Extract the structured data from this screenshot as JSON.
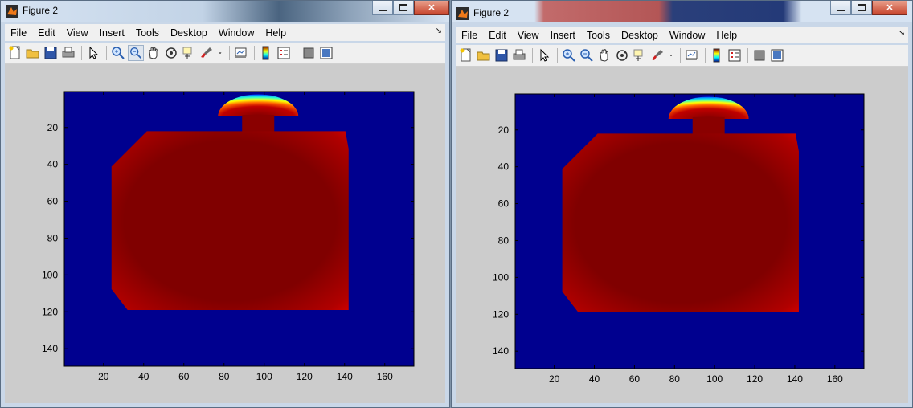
{
  "windows": [
    {
      "title": "Figure 2",
      "menus": [
        "File",
        "Edit",
        "View",
        "Insert",
        "Tools",
        "Desktop",
        "Window",
        "Help"
      ],
      "toolbar_icons": [
        "new-figure-icon",
        "open-file-icon",
        "save-icon",
        "print-icon",
        "edit-plot-arrow-icon",
        "zoom-in-icon",
        "zoom-out-icon",
        "pan-icon",
        "rotate-3d-icon",
        "data-cursor-icon",
        "brush-icon",
        "dropdown-arrow-icon",
        "link-plot-icon",
        "colorbar-icon",
        "legend-icon",
        "hide-plot-tools-icon",
        "show-plot-tools-icon"
      ],
      "chart_data": {
        "type": "heatmap",
        "description_colormap": "jet",
        "x_ticks": [
          20,
          40,
          60,
          80,
          100,
          120,
          140,
          160
        ],
        "y_ticks": [
          20,
          40,
          60,
          80,
          100,
          120,
          140
        ],
        "xlim": [
          0.5,
          174.5
        ],
        "ylim": [
          0.5,
          149.5
        ],
        "y_direction": "reverse",
        "background_value": 0,
        "body": {
          "x": [
            24,
            142
          ],
          "y": [
            22,
            119
          ],
          "value": 1
        },
        "top_cap": {
          "center_x": 97,
          "top_y": 2,
          "width": 40,
          "base_y": 14
        },
        "neck": {
          "x": [
            89,
            105
          ],
          "y": [
            14,
            22
          ]
        }
      }
    },
    {
      "title": "Figure 2",
      "menus": [
        "File",
        "Edit",
        "View",
        "Insert",
        "Tools",
        "Desktop",
        "Window",
        "Help"
      ],
      "toolbar_icons": [
        "new-figure-icon",
        "open-file-icon",
        "save-icon",
        "print-icon",
        "edit-plot-arrow-icon",
        "zoom-in-icon",
        "zoom-out-icon",
        "pan-icon",
        "rotate-3d-icon",
        "data-cursor-icon",
        "brush-icon",
        "dropdown-arrow-icon",
        "link-plot-icon",
        "colorbar-icon",
        "legend-icon",
        "hide-plot-tools-icon",
        "show-plot-tools-icon"
      ],
      "chart_data": {
        "type": "heatmap",
        "description_colormap": "jet",
        "x_ticks": [
          20,
          40,
          60,
          80,
          100,
          120,
          140,
          160
        ],
        "y_ticks": [
          20,
          40,
          60,
          80,
          100,
          120,
          140
        ],
        "xlim": [
          0.5,
          174.5
        ],
        "ylim": [
          0.5,
          149.5
        ],
        "y_direction": "reverse",
        "background_value": 0,
        "body": {
          "x": [
            24,
            142
          ],
          "y": [
            22,
            119
          ],
          "value": 1
        },
        "top_cap": {
          "center_x": 97,
          "top_y": 2,
          "width": 40,
          "base_y": 14
        },
        "neck": {
          "x": [
            89,
            105
          ],
          "y": [
            14,
            22
          ]
        }
      }
    }
  ],
  "colors": {
    "background_blue": "#00008f",
    "body_red": "#800000",
    "edge_red": "#d40000",
    "figure_bg": "#cccccc"
  }
}
